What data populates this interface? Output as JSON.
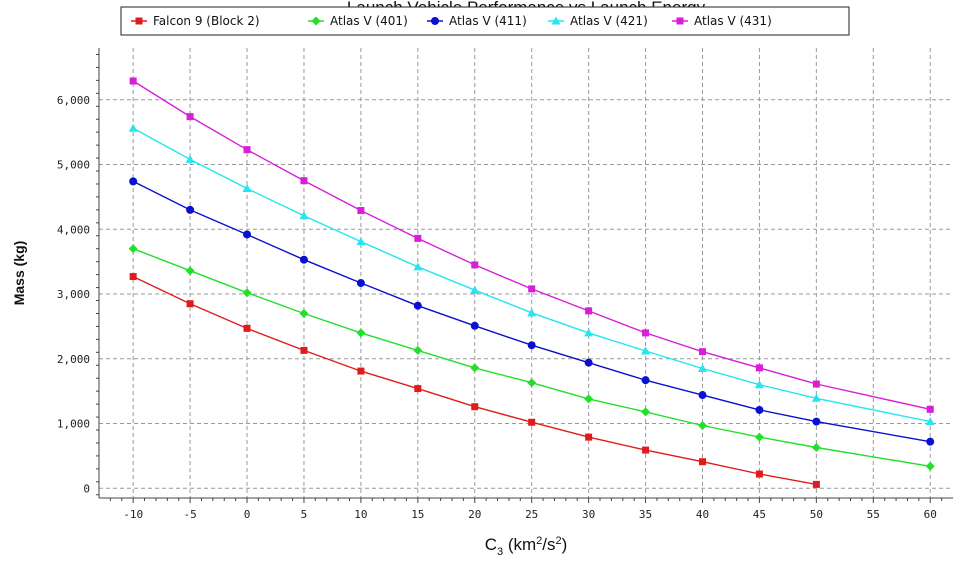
{
  "chart_data": {
    "type": "line",
    "title": "Launch Vehicle Performance vs Launch Energy",
    "xlabel": {
      "base": "C",
      "sub": "3",
      "rest1": " (km",
      "sup1": "2",
      "rest2": "/s",
      "sup2": "2",
      "rest3": ")"
    },
    "ylabel": "Mass (kg)",
    "xlim": [
      -13,
      62
    ],
    "ylim": [
      -150,
      6800
    ],
    "x_ticks": [
      -10,
      -5,
      0,
      5,
      10,
      15,
      20,
      25,
      30,
      35,
      40,
      45,
      50,
      55,
      60
    ],
    "x_tick_labels": [
      "-10",
      "-5",
      "0",
      "5",
      "10",
      "15",
      "20",
      "25",
      "30",
      "35",
      "40",
      "45",
      "50",
      "55",
      "60"
    ],
    "y_ticks": [
      0,
      1000,
      2000,
      3000,
      4000,
      5000,
      6000
    ],
    "y_tick_labels": [
      "0",
      "1,000",
      "2,000",
      "3,000",
      "4,000",
      "5,000",
      "6,000"
    ],
    "grid": true,
    "legend_position": "top",
    "series": [
      {
        "name": "Falcon 9 (Block 2)",
        "color": "#e01b1b",
        "marker": "square",
        "x": [
          -10,
          -5,
          0,
          5,
          10,
          15,
          20,
          25,
          30,
          35,
          40,
          45,
          50
        ],
        "y": [
          3270,
          2850,
          2470,
          2130,
          1810,
          1540,
          1260,
          1020,
          790,
          590,
          410,
          220,
          60
        ]
      },
      {
        "name": "Atlas V (401)",
        "color": "#22e02a",
        "marker": "diamond",
        "x": [
          -10,
          -5,
          0,
          5,
          10,
          15,
          20,
          25,
          30,
          35,
          40,
          45,
          50,
          60
        ],
        "y": [
          3700,
          3360,
          3020,
          2700,
          2400,
          2130,
          1860,
          1630,
          1380,
          1180,
          970,
          790,
          630,
          340
        ]
      },
      {
        "name": "Atlas V (411)",
        "color": "#0a10d0",
        "marker": "circle",
        "x": [
          -10,
          -5,
          0,
          5,
          10,
          15,
          20,
          25,
          30,
          35,
          40,
          45,
          50,
          60
        ],
        "y": [
          4740,
          4300,
          3920,
          3530,
          3170,
          2820,
          2510,
          2210,
          1940,
          1670,
          1440,
          1210,
          1030,
          720
        ]
      },
      {
        "name": "Atlas V (421)",
        "color": "#22e6f0",
        "marker": "triangle",
        "x": [
          -10,
          -5,
          0,
          5,
          10,
          15,
          20,
          25,
          30,
          35,
          40,
          45,
          50,
          60
        ],
        "y": [
          5560,
          5080,
          4630,
          4210,
          3810,
          3420,
          3060,
          2710,
          2400,
          2120,
          1850,
          1600,
          1390,
          1030
        ]
      },
      {
        "name": "Atlas V (431)",
        "color": "#d81ed8",
        "marker": "square",
        "x": [
          -10,
          -5,
          0,
          5,
          10,
          15,
          20,
          25,
          30,
          35,
          40,
          45,
          50,
          60
        ],
        "y": [
          6290,
          5740,
          5230,
          4750,
          4290,
          3860,
          3450,
          3080,
          2740,
          2400,
          2110,
          1860,
          1610,
          1220
        ]
      }
    ]
  }
}
